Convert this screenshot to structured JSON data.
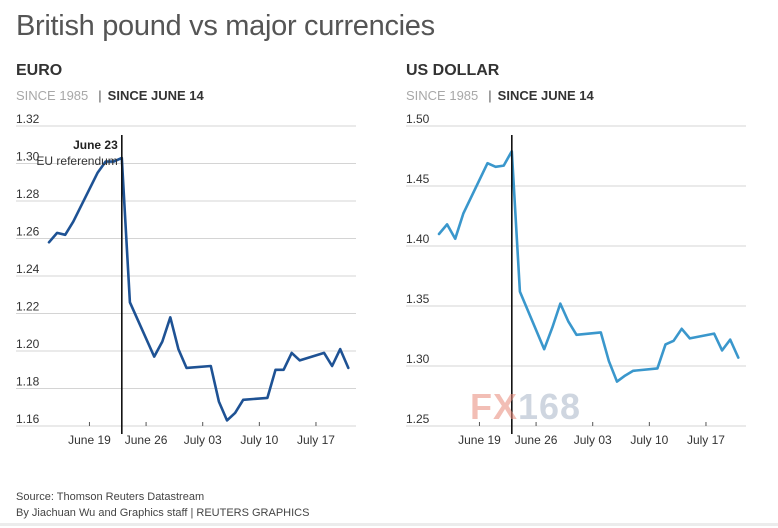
{
  "title": "British pound vs major currencies",
  "source": "Source: Thomson Reuters Datastream",
  "byline": "By Jiachuan Wu and Graphics staff | REUTERS GRAPHICS",
  "watermark": {
    "fx": "FX",
    "num": "168"
  },
  "panels": [
    {
      "title": "EURO",
      "tab_inactive": "SINCE 1985",
      "tab_active": "SINCE JUNE 14"
    },
    {
      "title": "US DOLLAR",
      "tab_inactive": "SINCE 1985",
      "tab_active": "SINCE JUNE 14"
    }
  ],
  "chart_data": [
    {
      "type": "line",
      "title": "EURO",
      "color": "#1e5294",
      "ylim": [
        1.16,
        1.32
      ],
      "yticks": [
        "1.32",
        "1.30",
        "1.28",
        "1.26",
        "1.24",
        "1.22",
        "1.20",
        "1.18",
        "1.16"
      ],
      "xticks": [
        "June 19",
        "June 26",
        "July 03",
        "July 10",
        "July 17"
      ],
      "x": [
        "2016-06-14",
        "2016-06-15",
        "2016-06-16",
        "2016-06-17",
        "2016-06-20",
        "2016-06-21",
        "2016-06-22",
        "2016-06-23",
        "2016-06-24",
        "2016-06-27",
        "2016-06-28",
        "2016-06-29",
        "2016-06-30",
        "2016-07-01",
        "2016-07-04",
        "2016-07-05",
        "2016-07-06",
        "2016-07-07",
        "2016-07-08",
        "2016-07-11",
        "2016-07-12",
        "2016-07-13",
        "2016-07-14",
        "2016-07-15",
        "2016-07-18",
        "2016-07-19",
        "2016-07-20",
        "2016-07-21"
      ],
      "values": [
        1.258,
        1.263,
        1.262,
        1.269,
        1.295,
        1.301,
        1.301,
        1.303,
        1.226,
        1.197,
        1.205,
        1.218,
        1.201,
        1.191,
        1.192,
        1.173,
        1.163,
        1.167,
        1.174,
        1.175,
        1.19,
        1.19,
        1.199,
        1.195,
        1.199,
        1.192,
        1.201,
        1.191
      ],
      "annotation": {
        "date": "2016-06-23",
        "label_bold": "June 23",
        "label": "EU referendum"
      }
    },
    {
      "type": "line",
      "title": "US DOLLAR",
      "color": "#3a97cc",
      "ylim": [
        1.25,
        1.5
      ],
      "yticks": [
        "1.50",
        "1.45",
        "1.40",
        "1.35",
        "1.30",
        "1.25"
      ],
      "xticks": [
        "June 19",
        "June 26",
        "July 03",
        "July 10",
        "July 17"
      ],
      "x": [
        "2016-06-14",
        "2016-06-15",
        "2016-06-16",
        "2016-06-17",
        "2016-06-20",
        "2016-06-21",
        "2016-06-22",
        "2016-06-23",
        "2016-06-24",
        "2016-06-27",
        "2016-06-28",
        "2016-06-29",
        "2016-06-30",
        "2016-07-01",
        "2016-07-04",
        "2016-07-05",
        "2016-07-06",
        "2016-07-07",
        "2016-07-08",
        "2016-07-11",
        "2016-07-12",
        "2016-07-13",
        "2016-07-14",
        "2016-07-15",
        "2016-07-18",
        "2016-07-19",
        "2016-07-20",
        "2016-07-21"
      ],
      "values": [
        1.41,
        1.418,
        1.406,
        1.427,
        1.469,
        1.466,
        1.467,
        1.479,
        1.362,
        1.314,
        1.332,
        1.352,
        1.337,
        1.326,
        1.328,
        1.304,
        1.287,
        1.292,
        1.296,
        1.298,
        1.318,
        1.321,
        1.331,
        1.323,
        1.327,
        1.313,
        1.322,
        1.307
      ]
    }
  ]
}
